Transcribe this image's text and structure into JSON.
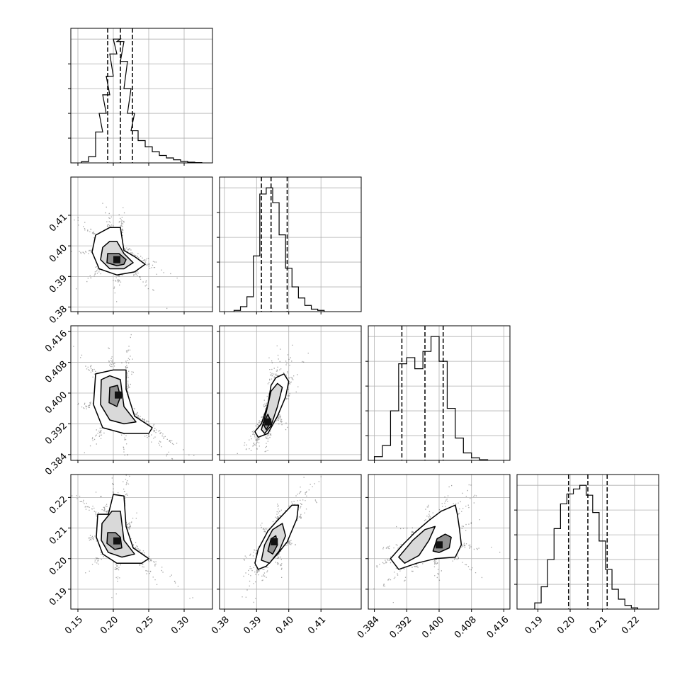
{
  "chart_data": {
    "type": "corner",
    "grid": true,
    "parameters": [
      {
        "axis_ticks": [
          "0.15",
          "0.20",
          "0.25",
          "0.30"
        ],
        "range": [
          0.14,
          0.34
        ],
        "quantiles": [
          0.192,
          0.21,
          0.227
        ],
        "hist": [
          {
            "x": 0.16,
            "v": 0.01
          },
          {
            "x": 0.17,
            "v": 0.05
          },
          {
            "x": 0.18,
            "v": 0.25
          },
          {
            "x": 0.185,
            "v": 0.4
          },
          {
            "x": 0.19,
            "v": 0.55
          },
          {
            "x": 0.195,
            "v": 0.7
          },
          {
            "x": 0.2,
            "v": 0.88
          },
          {
            "x": 0.205,
            "v": 1.0
          },
          {
            "x": 0.21,
            "v": 0.98
          },
          {
            "x": 0.215,
            "v": 0.82
          },
          {
            "x": 0.22,
            "v": 0.6
          },
          {
            "x": 0.225,
            "v": 0.4
          },
          {
            "x": 0.23,
            "v": 0.26
          },
          {
            "x": 0.24,
            "v": 0.18
          },
          {
            "x": 0.25,
            "v": 0.13
          },
          {
            "x": 0.26,
            "v": 0.09
          },
          {
            "x": 0.27,
            "v": 0.06
          },
          {
            "x": 0.28,
            "v": 0.04
          },
          {
            "x": 0.29,
            "v": 0.025
          },
          {
            "x": 0.3,
            "v": 0.012
          },
          {
            "x": 0.31,
            "v": 0.006
          },
          {
            "x": 0.32,
            "v": 0.002
          }
        ]
      },
      {
        "axis_ticks": [
          "0.38",
          "0.39",
          "0.40",
          "0.41"
        ],
        "range": [
          0.3785,
          0.4225
        ],
        "quantiles": [
          0.3915,
          0.3945,
          0.3995
        ],
        "hist": [
          {
            "x": 0.384,
            "v": 0.01
          },
          {
            "x": 0.386,
            "v": 0.04
          },
          {
            "x": 0.388,
            "v": 0.12
          },
          {
            "x": 0.39,
            "v": 0.45
          },
          {
            "x": 0.392,
            "v": 0.95
          },
          {
            "x": 0.394,
            "v": 1.0
          },
          {
            "x": 0.396,
            "v": 0.88
          },
          {
            "x": 0.398,
            "v": 0.62
          },
          {
            "x": 0.4,
            "v": 0.35
          },
          {
            "x": 0.402,
            "v": 0.2
          },
          {
            "x": 0.404,
            "v": 0.11
          },
          {
            "x": 0.406,
            "v": 0.05
          },
          {
            "x": 0.408,
            "v": 0.02
          },
          {
            "x": 0.41,
            "v": 0.01
          }
        ]
      },
      {
        "axis_ticks": [
          "0.384",
          "0.392",
          "0.400",
          "0.408",
          "0.416"
        ],
        "range": [
          0.3825,
          0.4175
        ],
        "quantiles": [
          0.3908,
          0.3965,
          0.401
        ],
        "hist": [
          {
            "x": 0.385,
            "v": 0.03
          },
          {
            "x": 0.387,
            "v": 0.12
          },
          {
            "x": 0.389,
            "v": 0.4
          },
          {
            "x": 0.391,
            "v": 0.78
          },
          {
            "x": 0.393,
            "v": 0.83
          },
          {
            "x": 0.395,
            "v": 0.74
          },
          {
            "x": 0.397,
            "v": 0.88
          },
          {
            "x": 0.399,
            "v": 1.0
          },
          {
            "x": 0.401,
            "v": 0.8
          },
          {
            "x": 0.403,
            "v": 0.42
          },
          {
            "x": 0.405,
            "v": 0.18
          },
          {
            "x": 0.407,
            "v": 0.06
          },
          {
            "x": 0.409,
            "v": 0.02
          },
          {
            "x": 0.411,
            "v": 0.005
          }
        ]
      },
      {
        "axis_ticks": [
          "0.19",
          "0.20",
          "0.21",
          "0.22"
        ],
        "range": [
          0.1835,
          0.2275
        ],
        "quantiles": [
          0.1995,
          0.2055,
          0.2115
        ],
        "hist": [
          {
            "x": 0.19,
            "v": 0.05
          },
          {
            "x": 0.192,
            "v": 0.18
          },
          {
            "x": 0.194,
            "v": 0.4
          },
          {
            "x": 0.196,
            "v": 0.65
          },
          {
            "x": 0.198,
            "v": 0.85
          },
          {
            "x": 0.2,
            "v": 0.93
          },
          {
            "x": 0.202,
            "v": 0.97
          },
          {
            "x": 0.204,
            "v": 1.0
          },
          {
            "x": 0.206,
            "v": 0.92
          },
          {
            "x": 0.208,
            "v": 0.78
          },
          {
            "x": 0.21,
            "v": 0.55
          },
          {
            "x": 0.212,
            "v": 0.32
          },
          {
            "x": 0.214,
            "v": 0.16
          },
          {
            "x": 0.216,
            "v": 0.08
          },
          {
            "x": 0.218,
            "v": 0.03
          },
          {
            "x": 0.22,
            "v": 0.01
          }
        ]
      }
    ],
    "pairs": [
      {
        "row": 1,
        "col": 0,
        "density_peak": [
          0.205,
          0.3955
        ],
        "contours": [
          [
            [
              0.175,
              0.4035
            ],
            [
              0.17,
              0.398
            ],
            [
              0.18,
              0.3925
            ],
            [
              0.205,
              0.3905
            ],
            [
              0.23,
              0.3915
            ],
            [
              0.245,
              0.394
            ],
            [
              0.23,
              0.3965
            ],
            [
              0.215,
              0.3985
            ],
            [
              0.21,
              0.406
            ],
            [
              0.195,
              0.406
            ]
          ],
          [
            [
              0.185,
              0.3995
            ],
            [
              0.182,
              0.3955
            ],
            [
              0.195,
              0.3925
            ],
            [
              0.215,
              0.3925
            ],
            [
              0.228,
              0.3945
            ],
            [
              0.215,
              0.3975
            ],
            [
              0.205,
              0.4015
            ],
            [
              0.195,
              0.4015
            ]
          ],
          [
            [
              0.192,
              0.3975
            ],
            [
              0.191,
              0.3945
            ],
            [
              0.205,
              0.3935
            ],
            [
              0.215,
              0.394
            ],
            [
              0.218,
              0.3955
            ],
            [
              0.208,
              0.3975
            ]
          ]
        ]
      },
      {
        "row": 2,
        "col": 0,
        "density_peak": [
          0.207,
          0.3995
        ],
        "contours": [
          [
            [
              0.175,
              0.405
            ],
            [
              0.172,
              0.397
            ],
            [
              0.185,
              0.391
            ],
            [
              0.215,
              0.3895
            ],
            [
              0.25,
              0.3895
            ],
            [
              0.255,
              0.391
            ],
            [
              0.23,
              0.394
            ],
            [
              0.218,
              0.401
            ],
            [
              0.218,
              0.406
            ],
            [
              0.2,
              0.406
            ]
          ],
          [
            [
              0.183,
              0.4035
            ],
            [
              0.182,
              0.397
            ],
            [
              0.195,
              0.393
            ],
            [
              0.215,
              0.392
            ],
            [
              0.232,
              0.3925
            ],
            [
              0.215,
              0.3965
            ],
            [
              0.21,
              0.4035
            ],
            [
              0.195,
              0.4045
            ]
          ],
          [
            [
              0.195,
              0.4015
            ],
            [
              0.194,
              0.3975
            ],
            [
              0.205,
              0.3965
            ],
            [
              0.21,
              0.399
            ],
            [
              0.206,
              0.402
            ]
          ]
        ]
      },
      {
        "row": 2,
        "col": 1,
        "density_peak": [
          0.3935,
          0.3925
        ],
        "contours": [
          [
            [
              0.3895,
              0.39
            ],
            [
              0.3915,
              0.392
            ],
            [
              0.3935,
              0.397
            ],
            [
              0.3945,
              0.402
            ],
            [
              0.396,
              0.404
            ],
            [
              0.3985,
              0.405
            ],
            [
              0.4,
              0.403
            ],
            [
              0.399,
              0.399
            ],
            [
              0.3965,
              0.394
            ],
            [
              0.3935,
              0.3895
            ],
            [
              0.3905,
              0.3885
            ]
          ],
          [
            [
              0.3915,
              0.3905
            ],
            [
              0.393,
              0.395
            ],
            [
              0.3945,
              0.4005
            ],
            [
              0.3965,
              0.4025
            ],
            [
              0.398,
              0.4015
            ],
            [
              0.3965,
              0.3965
            ],
            [
              0.3945,
              0.3915
            ],
            [
              0.3925,
              0.3895
            ]
          ],
          [
            [
              0.392,
              0.392
            ],
            [
              0.3935,
              0.3945
            ],
            [
              0.3945,
              0.3925
            ],
            [
              0.393,
              0.3905
            ]
          ]
        ]
      },
      {
        "row": 3,
        "col": 0,
        "density_peak": [
          0.205,
          0.2058
        ],
        "contours": [
          [
            [
              0.178,
              0.2145
            ],
            [
              0.176,
              0.207
            ],
            [
              0.185,
              0.2015
            ],
            [
              0.205,
              0.1985
            ],
            [
              0.24,
              0.1985
            ],
            [
              0.25,
              0.2
            ],
            [
              0.228,
              0.2035
            ],
            [
              0.218,
              0.2105
            ],
            [
              0.215,
              0.2205
            ],
            [
              0.2,
              0.221
            ],
            [
              0.193,
              0.2145
            ]
          ],
          [
            [
              0.184,
              0.2115
            ],
            [
              0.183,
              0.206
            ],
            [
              0.193,
              0.202
            ],
            [
              0.212,
              0.2005
            ],
            [
              0.23,
              0.2015
            ],
            [
              0.215,
              0.206
            ],
            [
              0.21,
              0.2155
            ],
            [
              0.198,
              0.2155
            ]
          ],
          [
            [
              0.192,
              0.2085
            ],
            [
              0.191,
              0.205
            ],
            [
              0.202,
              0.203
            ],
            [
              0.212,
              0.2035
            ],
            [
              0.21,
              0.207
            ],
            [
              0.203,
              0.2085
            ]
          ]
        ]
      },
      {
        "row": 3,
        "col": 1,
        "density_peak": [
          0.3955,
          0.2055
        ],
        "contours": [
          [
            [
              0.3895,
              0.1985
            ],
            [
              0.3905,
              0.203
            ],
            [
              0.3935,
              0.209
            ],
            [
              0.3965,
              0.2125
            ],
            [
              0.401,
              0.2175
            ],
            [
              0.403,
              0.2175
            ],
            [
              0.4025,
              0.213
            ],
            [
              0.3995,
              0.2055
            ],
            [
              0.3965,
              0.2015
            ],
            [
              0.393,
              0.1975
            ],
            [
              0.3905,
              0.1965
            ]
          ],
          [
            [
              0.3915,
              0.1995
            ],
            [
              0.3925,
              0.2045
            ],
            [
              0.395,
              0.2095
            ],
            [
              0.398,
              0.2115
            ],
            [
              0.399,
              0.2075
            ],
            [
              0.397,
              0.2025
            ],
            [
              0.394,
              0.1985
            ]
          ],
          [
            [
              0.3935,
              0.2025
            ],
            [
              0.3945,
              0.2065
            ],
            [
              0.396,
              0.2075
            ],
            [
              0.3965,
              0.2045
            ],
            [
              0.395,
              0.2015
            ]
          ]
        ]
      },
      {
        "row": 3,
        "col": 2,
        "density_peak": [
          0.4,
          0.2045
        ],
        "contours": [
          [
            [
              0.388,
              0.2
            ],
            [
              0.391,
              0.2045
            ],
            [
              0.394,
              0.2085
            ],
            [
              0.3975,
              0.2125
            ],
            [
              0.4005,
              0.2155
            ],
            [
              0.404,
              0.2175
            ],
            [
              0.4045,
              0.2145
            ],
            [
              0.405,
              0.21
            ],
            [
              0.4055,
              0.2045
            ],
            [
              0.404,
              0.2005
            ],
            [
              0.399,
              0.2
            ],
            [
              0.3945,
              0.1985
            ],
            [
              0.39,
              0.1965
            ]
          ],
          [
            [
              0.39,
              0.2005
            ],
            [
              0.3935,
              0.206
            ],
            [
              0.3965,
              0.2095
            ],
            [
              0.399,
              0.2105
            ],
            [
              0.3975,
              0.206
            ],
            [
              0.395,
              0.201
            ],
            [
              0.3915,
              0.1985
            ]
          ],
          [
            [
              0.3985,
              0.2025
            ],
            [
              0.3995,
              0.2065
            ],
            [
              0.4015,
              0.208
            ],
            [
              0.403,
              0.207
            ],
            [
              0.4025,
              0.2035
            ],
            [
              0.4,
              0.202
            ]
          ]
        ]
      }
    ]
  }
}
